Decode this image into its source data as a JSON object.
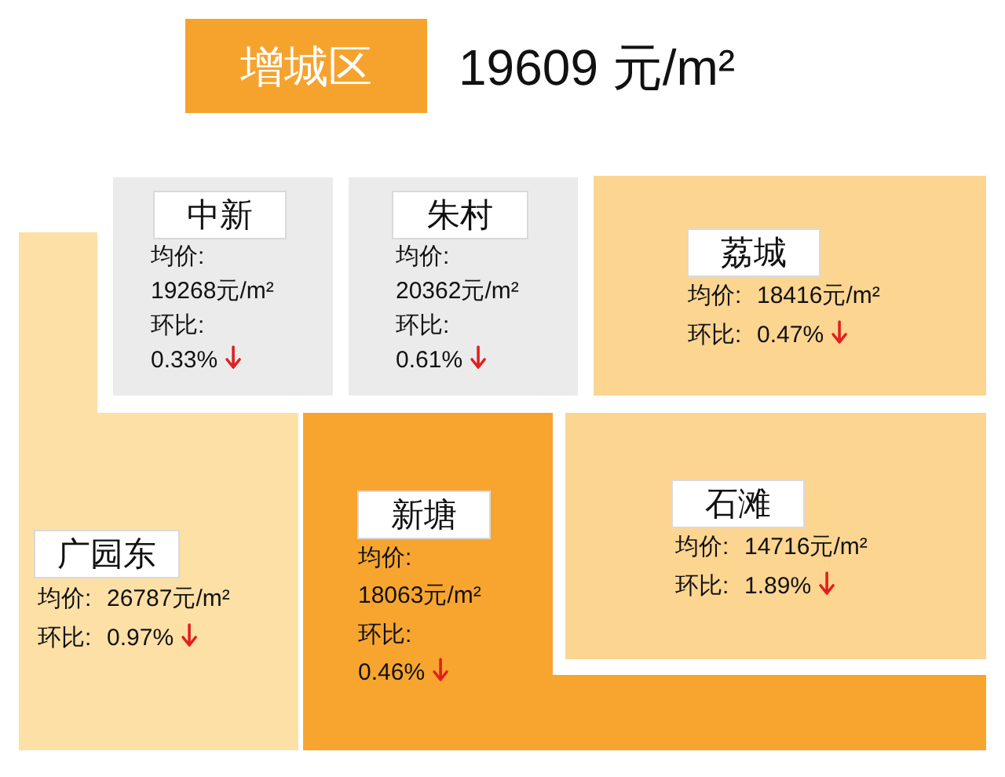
{
  "chart_data": {
    "type": "other",
    "title": "增城区",
    "subtitle": "19609 元/m²",
    "categories": [
      "中新",
      "朱村",
      "荔城",
      "广园东",
      "新塘",
      "石滩"
    ],
    "series": [
      {
        "name": "均价:",
        "colors": [
          "#ebebeb",
          "#ebebeb",
          "#fcd591",
          "#fde0a6",
          "#f8a530",
          "#fcd591"
        ],
        "values": [
          19268,
          20362,
          18416,
          26787,
          18063,
          14716
        ],
        "value_labels": [
          "19268元/m²",
          "20362元/m²",
          "18416元/m²",
          "26787元/m²",
          "18063元/m²",
          "14716元/m²"
        ]
      },
      {
        "name": "环比:",
        "values": [
          0.33,
          0.61,
          0.47,
          0.97,
          0.46,
          1.89
        ],
        "value_labels": [
          "0.33%",
          "0.61%",
          "0.47%",
          "0.97%",
          "0.46%",
          "1.89%"
        ]
      }
    ]
  }
}
